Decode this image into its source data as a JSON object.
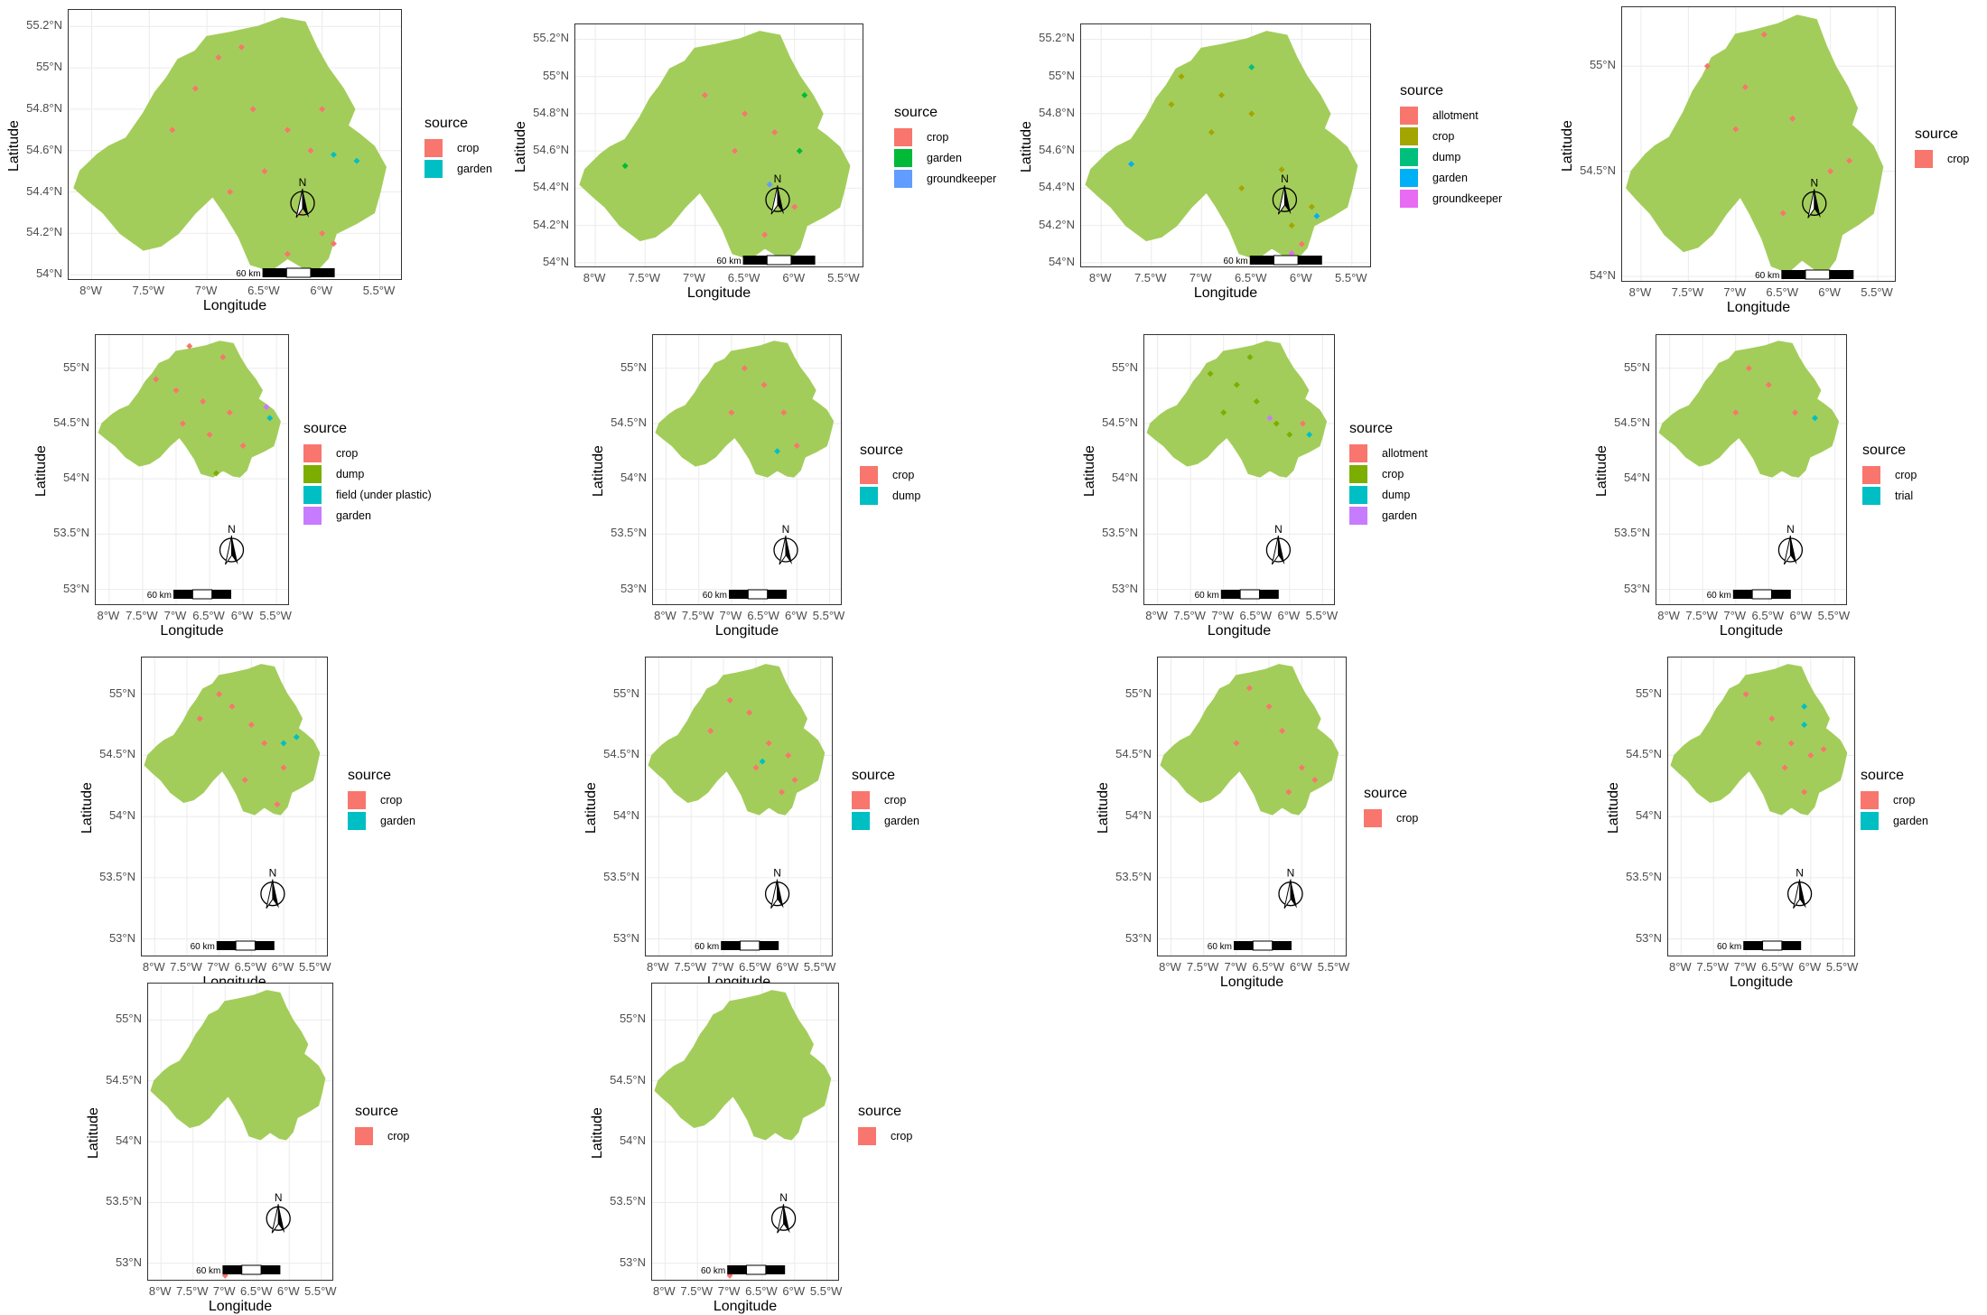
{
  "axes": {
    "xlabel": "Longitude",
    "ylabel": "Latitude"
  },
  "legend_title": "source",
  "map_annotations": {
    "north_label": "N",
    "scale_label": "60 km"
  },
  "colors": {
    "land": "#a3cd5a",
    "grid": "#ebebeb",
    "crop": "#f8766d",
    "garden_2": "#00bfc4",
    "garden_3": "#00ba38",
    "groundkeeper_3": "#619cff",
    "allotment_5": "#f8766d",
    "crop_5": "#a3a500",
    "dump_5": "#00bf7d",
    "garden_5": "#00b0f6",
    "groundkeeper_5": "#e76bf3",
    "dump_4": "#7cae00",
    "other_4": "#00bfc4",
    "garden_4": "#c77cff"
  },
  "panels": [
    {
      "id": "p1",
      "y_ticks": [
        "55.2°N",
        "55°N",
        "54.8°N",
        "54.6°N",
        "54.4°N",
        "54.2°N",
        "54°N"
      ],
      "x_ticks": [
        "8°W",
        "7.5°W",
        "7°W",
        "6.5°W",
        "6°W",
        "5.5°W"
      ],
      "legend": [
        {
          "label": "crop",
          "color": "#f8766d"
        },
        {
          "label": "garden",
          "color": "#00bfc4"
        }
      ]
    },
    {
      "id": "p2",
      "y_ticks": [
        "55.2°N",
        "55°N",
        "54.8°N",
        "54.6°N",
        "54.4°N",
        "54.2°N",
        "54°N"
      ],
      "x_ticks": [
        "8°W",
        "7.5°W",
        "7°W",
        "6.5°W",
        "6°W",
        "5.5°W"
      ],
      "legend": [
        {
          "label": "crop",
          "color": "#f8766d"
        },
        {
          "label": "garden",
          "color": "#00ba38"
        },
        {
          "label": "groundkeeper",
          "color": "#619cff"
        }
      ]
    },
    {
      "id": "p3",
      "y_ticks": [
        "55.2°N",
        "55°N",
        "54.8°N",
        "54.6°N",
        "54.4°N",
        "54.2°N",
        "54°N"
      ],
      "x_ticks": [
        "8°W",
        "7.5°W",
        "7°W",
        "6.5°W",
        "6°W",
        "5.5°W"
      ],
      "legend": [
        {
          "label": "allotment",
          "color": "#f8766d"
        },
        {
          "label": "crop",
          "color": "#a3a500"
        },
        {
          "label": "dump",
          "color": "#00bf7d"
        },
        {
          "label": "garden",
          "color": "#00b0f6"
        },
        {
          "label": "groundkeeper",
          "color": "#e76bf3"
        }
      ]
    },
    {
      "id": "p4",
      "y_ticks": [
        "55°N",
        "54.5°N",
        "54°N"
      ],
      "x_ticks": [
        "8°W",
        "7.5°W",
        "7°W",
        "6.5°W",
        "6°W",
        "5.5°W"
      ],
      "legend": [
        {
          "label": "crop",
          "color": "#f8766d"
        }
      ]
    },
    {
      "id": "p5",
      "y_ticks": [
        "55°N",
        "54.5°N",
        "54°N",
        "53.5°N",
        "53°N"
      ],
      "x_ticks": [
        "8°W",
        "7.5°W",
        "7°W",
        "6.5°W",
        "6°W",
        "5.5°W"
      ],
      "legend": [
        {
          "label": "crop",
          "color": "#f8766d"
        },
        {
          "label": "dump",
          "color": "#7cae00"
        },
        {
          "label": "field (under plastic)",
          "color": "#00bfc4"
        },
        {
          "label": "garden",
          "color": "#c77cff"
        }
      ]
    },
    {
      "id": "p6",
      "y_ticks": [
        "55°N",
        "54.5°N",
        "54°N",
        "53.5°N",
        "53°N"
      ],
      "x_ticks": [
        "8°W",
        "7.5°W",
        "7°W",
        "6.5°W",
        "6°W",
        "5.5°W"
      ],
      "legend": [
        {
          "label": "crop",
          "color": "#f8766d"
        },
        {
          "label": "dump",
          "color": "#00bfc4"
        }
      ]
    },
    {
      "id": "p7",
      "y_ticks": [
        "55°N",
        "54.5°N",
        "54°N",
        "53.5°N",
        "53°N"
      ],
      "x_ticks": [
        "8°W",
        "7.5°W",
        "7°W",
        "6.5°W",
        "6°W",
        "5.5°W"
      ],
      "legend": [
        {
          "label": "allotment",
          "color": "#f8766d"
        },
        {
          "label": "crop",
          "color": "#7cae00"
        },
        {
          "label": "dump",
          "color": "#00bfc4"
        },
        {
          "label": "garden",
          "color": "#c77cff"
        }
      ]
    },
    {
      "id": "p8",
      "y_ticks": [
        "55°N",
        "54.5°N",
        "54°N",
        "53.5°N",
        "53°N"
      ],
      "x_ticks": [
        "8°W",
        "7.5°W",
        "7°W",
        "6.5°W",
        "6°W",
        "5.5°W"
      ],
      "legend": [
        {
          "label": "crop",
          "color": "#f8766d"
        },
        {
          "label": "trial",
          "color": "#00bfc4"
        }
      ]
    },
    {
      "id": "p9",
      "y_ticks": [
        "55°N",
        "54.5°N",
        "54°N",
        "53.5°N",
        "53°N"
      ],
      "x_ticks": [
        "8°W",
        "7.5°W",
        "7°W",
        "6.5°W",
        "6°W",
        "5.5°W"
      ],
      "legend": [
        {
          "label": "crop",
          "color": "#f8766d"
        },
        {
          "label": "garden",
          "color": "#00bfc4"
        }
      ]
    },
    {
      "id": "p10",
      "y_ticks": [
        "55°N",
        "54.5°N",
        "54°N",
        "53.5°N",
        "53°N"
      ],
      "x_ticks": [
        "8°W",
        "7.5°W",
        "7°W",
        "6.5°W",
        "6°W",
        "5.5°W"
      ],
      "legend": [
        {
          "label": "crop",
          "color": "#f8766d"
        },
        {
          "label": "garden",
          "color": "#00bfc4"
        }
      ]
    },
    {
      "id": "p11",
      "y_ticks": [
        "55°N",
        "54.5°N",
        "54°N",
        "53.5°N",
        "53°N"
      ],
      "x_ticks": [
        "8°W",
        "7.5°W",
        "7°W",
        "6.5°W",
        "6°W",
        "5.5°W"
      ],
      "legend": [
        {
          "label": "crop",
          "color": "#f8766d"
        }
      ]
    },
    {
      "id": "p12",
      "y_ticks": [
        "55°N",
        "54.5°N",
        "54°N",
        "53.5°N",
        "53°N"
      ],
      "x_ticks": [
        "8°W",
        "7.5°W",
        "7°W",
        "6.5°W",
        "6°W",
        "5.5°W"
      ],
      "legend": [
        {
          "label": "crop",
          "color": "#f8766d"
        },
        {
          "label": "garden",
          "color": "#00bfc4"
        }
      ]
    },
    {
      "id": "p13",
      "y_ticks": [
        "55°N",
        "54.5°N",
        "54°N",
        "53.5°N",
        "53°N"
      ],
      "x_ticks": [
        "8°W",
        "7.5°W",
        "7°W",
        "6.5°W",
        "6°W",
        "5.5°W"
      ],
      "legend": [
        {
          "label": "crop",
          "color": "#f8766d"
        }
      ]
    },
    {
      "id": "p14",
      "y_ticks": [
        "55°N",
        "54.5°N",
        "54°N",
        "53.5°N",
        "53°N"
      ],
      "x_ticks": [
        "8°W",
        "7.5°W",
        "7°W",
        "6.5°W",
        "6°W",
        "5.5°W"
      ],
      "legend": [
        {
          "label": "crop",
          "color": "#f8766d"
        }
      ]
    }
  ]
}
